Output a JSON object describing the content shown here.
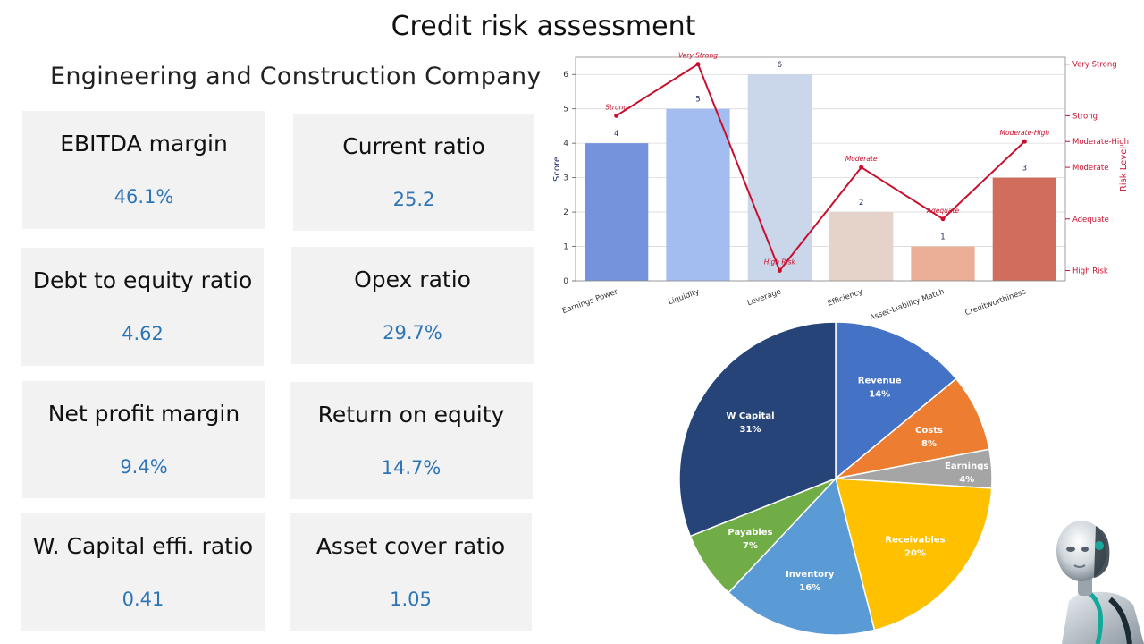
{
  "page": {
    "title": "Credit risk assessment",
    "subtitle": "Engineering and Construction Company"
  },
  "metrics": [
    {
      "label": "EBITDA margin",
      "value": "46.1%"
    },
    {
      "label": "Current ratio",
      "value": "25.2"
    },
    {
      "label": "Debt to equity ratio",
      "value": "4.62"
    },
    {
      "label": "Opex ratio",
      "value": "29.7%"
    },
    {
      "label": "Net profit margin",
      "value": "9.4%"
    },
    {
      "label": "Return on equity",
      "value": "14.7%"
    },
    {
      "label": "W. Capital effi. ratio",
      "value": "0.41"
    },
    {
      "label": "Asset cover ratio",
      "value": "1.05"
    }
  ],
  "colors": {
    "metric_value": "#2e75b6",
    "card_bg": "#f2f2f2",
    "risk_line": "#c8102e"
  },
  "chart_data": [
    {
      "type": "bar",
      "categories": [
        "Earnings Power",
        "Liquidity",
        "Leverage",
        "Efficiency",
        "Asset-Liability Match",
        "Creditworthiness"
      ],
      "values": [
        4,
        5,
        6,
        2,
        1,
        3
      ],
      "bar_colors": [
        "#7592dd",
        "#a4bdf0",
        "#cad6ea",
        "#e5d2c8",
        "#ebae96",
        "#d06d5c"
      ],
      "ylabel": "Score",
      "ylim": [
        0,
        6.5
      ],
      "yticks": [
        0,
        1,
        2,
        3,
        4,
        5,
        6
      ],
      "grid": true,
      "secondary_axis": {
        "label": "Risk Level",
        "ticks": [
          {
            "label": "High Risk",
            "value": 0.3
          },
          {
            "label": "Adequate",
            "value": 1.8
          },
          {
            "label": "Moderate",
            "value": 3.3
          },
          {
            "label": "Moderate-High",
            "value": 4.05
          },
          {
            "label": "Strong",
            "value": 4.8
          },
          {
            "label": "Very Strong",
            "value": 6.3
          }
        ]
      },
      "risk_line": {
        "labels": [
          "Strong",
          "Very Strong",
          "High Risk",
          "Moderate",
          "Adequate",
          "Moderate-High"
        ],
        "values": [
          4.8,
          6.3,
          0.3,
          3.3,
          1.8,
          4.05
        ]
      }
    },
    {
      "type": "pie",
      "labels": [
        "Revenue",
        "Costs",
        "Earnings",
        "Receivables",
        "Inventory",
        "Payables",
        "W Capital"
      ],
      "values": [
        14,
        8,
        4,
        20,
        16,
        7,
        31
      ],
      "display": [
        "14%",
        "8%",
        "4%",
        "20%",
        "16%",
        "7%",
        "31%"
      ],
      "colors": [
        "#4472c4",
        "#ed7d31",
        "#a5a5a5",
        "#ffc000",
        "#5b9bd5",
        "#70ad47",
        "#264478"
      ],
      "start_angle_deg": 0,
      "direction": "clockwise"
    }
  ]
}
